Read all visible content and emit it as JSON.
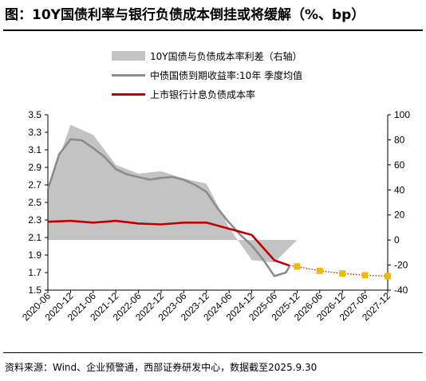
{
  "title": "图：10Y国债利率与银行负债成本倒挂或将缓解（%、bp）",
  "source": "资料来源：Wind、企业预警通，西部证券研发中心，数据截至2025.9.30",
  "colors": {
    "spread_area": "#c3c3c3",
    "treasury_line": "#8c8c8c",
    "bank_cost_line": "#c00000",
    "forecast_marker": "#f5b800"
  },
  "chart_data": {
    "type": "line",
    "legend": [
      {
        "label": "10Y国债与负债成本率利差（右轴）",
        "kind": "area"
      },
      {
        "label": "中债国债到期收益率:10年  季度均值",
        "kind": "line"
      },
      {
        "label": "上市银行计息负债成本率",
        "kind": "line"
      }
    ],
    "legend_position": "top-center",
    "grid": false,
    "x_tick_labels": [
      "2020-06",
      "2020-12",
      "2021-06",
      "2021-12",
      "2022-06",
      "2022-12",
      "2023-06",
      "2023-12",
      "2024-06",
      "2024-12",
      "2025-06",
      "2025-12",
      "2026-06",
      "2026-12",
      "2027-06",
      "2027-12"
    ],
    "x_range": [
      "2020-06",
      "2027-12"
    ],
    "left_axis": {
      "min": 1.5,
      "max": 3.5,
      "ticks": [
        "3.5",
        "3.3",
        "3.1",
        "2.9",
        "2.7",
        "2.5",
        "2.3",
        "2.1",
        "1.9",
        "1.7",
        "1.5"
      ]
    },
    "right_axis": {
      "min": -40,
      "max": 100,
      "ticks": [
        "100",
        "80",
        "60",
        "40",
        "20",
        "0",
        "-20",
        "-40"
      ]
    },
    "series": [
      {
        "name": "10Y国债与负债成本率利差（右轴）",
        "axis": "right",
        "style": "area",
        "points": [
          [
            "2020-06",
            40
          ],
          [
            "2020-12",
            92
          ],
          [
            "2021-06",
            84
          ],
          [
            "2021-12",
            60
          ],
          [
            "2022-06",
            53
          ],
          [
            "2022-12",
            55
          ],
          [
            "2023-06",
            49
          ],
          [
            "2023-12",
            45
          ],
          [
            "2024-06",
            10
          ],
          [
            "2024-12",
            -16
          ],
          [
            "2025-06",
            -18
          ],
          [
            "2025-12",
            0
          ]
        ]
      },
      {
        "name": "中债国债到期收益率:10年  季度均值",
        "axis": "left",
        "style": "line",
        "points": [
          [
            "2020-06",
            2.65
          ],
          [
            "2020-09",
            3.05
          ],
          [
            "2020-12",
            3.22
          ],
          [
            "2021-03",
            3.21
          ],
          [
            "2021-06",
            3.12
          ],
          [
            "2021-09",
            3.02
          ],
          [
            "2021-12",
            2.88
          ],
          [
            "2022-03",
            2.82
          ],
          [
            "2022-06",
            2.79
          ],
          [
            "2022-09",
            2.76
          ],
          [
            "2022-12",
            2.78
          ],
          [
            "2023-03",
            2.79
          ],
          [
            "2023-06",
            2.76
          ],
          [
            "2023-09",
            2.7
          ],
          [
            "2023-12",
            2.62
          ],
          [
            "2024-03",
            2.43
          ],
          [
            "2024-06",
            2.27
          ],
          [
            "2024-09",
            2.13
          ],
          [
            "2024-12",
            2.01
          ],
          [
            "2025-03",
            1.85
          ],
          [
            "2025-06",
            1.66
          ],
          [
            "2025-09",
            1.7
          ],
          [
            "2025-10",
            1.77
          ]
        ]
      },
      {
        "name": "上市银行计息负债成本率",
        "axis": "left",
        "style": "line",
        "points": [
          [
            "2020-06",
            2.28
          ],
          [
            "2020-12",
            2.29
          ],
          [
            "2021-06",
            2.27
          ],
          [
            "2021-12",
            2.29
          ],
          [
            "2022-06",
            2.26
          ],
          [
            "2022-12",
            2.25
          ],
          [
            "2023-06",
            2.27
          ],
          [
            "2023-12",
            2.27
          ],
          [
            "2024-06",
            2.2
          ],
          [
            "2024-12",
            2.13
          ],
          [
            "2025-06",
            1.84
          ],
          [
            "2025-10",
            1.78
          ]
        ]
      },
      {
        "name": "上市银行计息负债成本率（预测）",
        "axis": "left",
        "style": "dotted-with-markers",
        "points": [
          [
            "2025-12",
            1.77
          ],
          [
            "2026-06",
            1.72
          ],
          [
            "2026-12",
            1.69
          ],
          [
            "2027-06",
            1.67
          ],
          [
            "2027-12",
            1.66
          ]
        ]
      }
    ]
  }
}
